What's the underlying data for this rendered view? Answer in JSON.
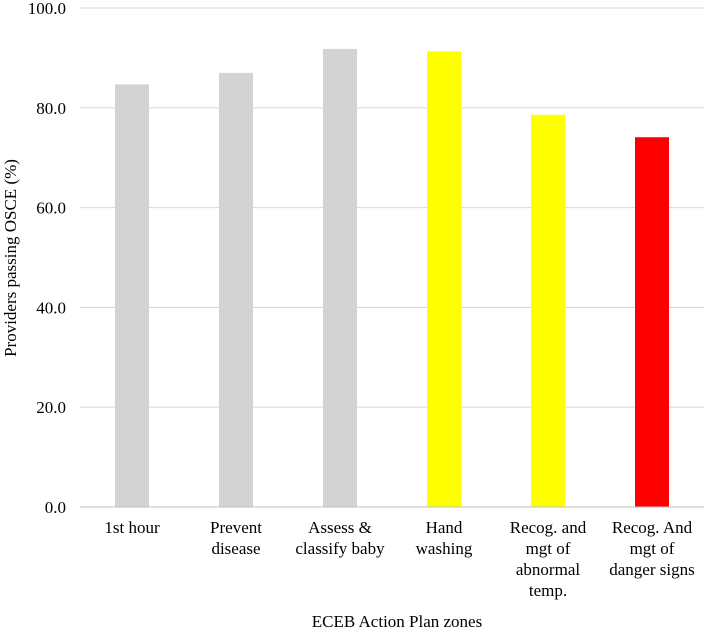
{
  "chart_data": {
    "type": "bar",
    "title": "",
    "xlabel": "ECEB Action Plan zones",
    "ylabel": "Providers passing OSCE (%)",
    "ylim": [
      0,
      100
    ],
    "yticks": [
      "0.0",
      "20.0",
      "40.0",
      "60.0",
      "80.0",
      "100.0"
    ],
    "grid": true,
    "legend": "none",
    "categories": [
      [
        "1st hour"
      ],
      [
        "Prevent",
        "disease"
      ],
      [
        "Assess &",
        "classify baby"
      ],
      [
        "Hand",
        "washing"
      ],
      [
        "Recog. and",
        "mgt of",
        "abnormal",
        "temp."
      ],
      [
        "Recog. And",
        "mgt of",
        "danger signs"
      ]
    ],
    "values": [
      84.7,
      87.0,
      91.8,
      91.3,
      78.6,
      74.1
    ],
    "bar_colors": [
      "#d3d3d3",
      "#d3d3d3",
      "#d3d3d3",
      "#ffff00",
      "#ffff00",
      "#ff0000"
    ],
    "colors": {
      "grid": "#d9d9d9",
      "axis": "#bfbfbf"
    }
  }
}
